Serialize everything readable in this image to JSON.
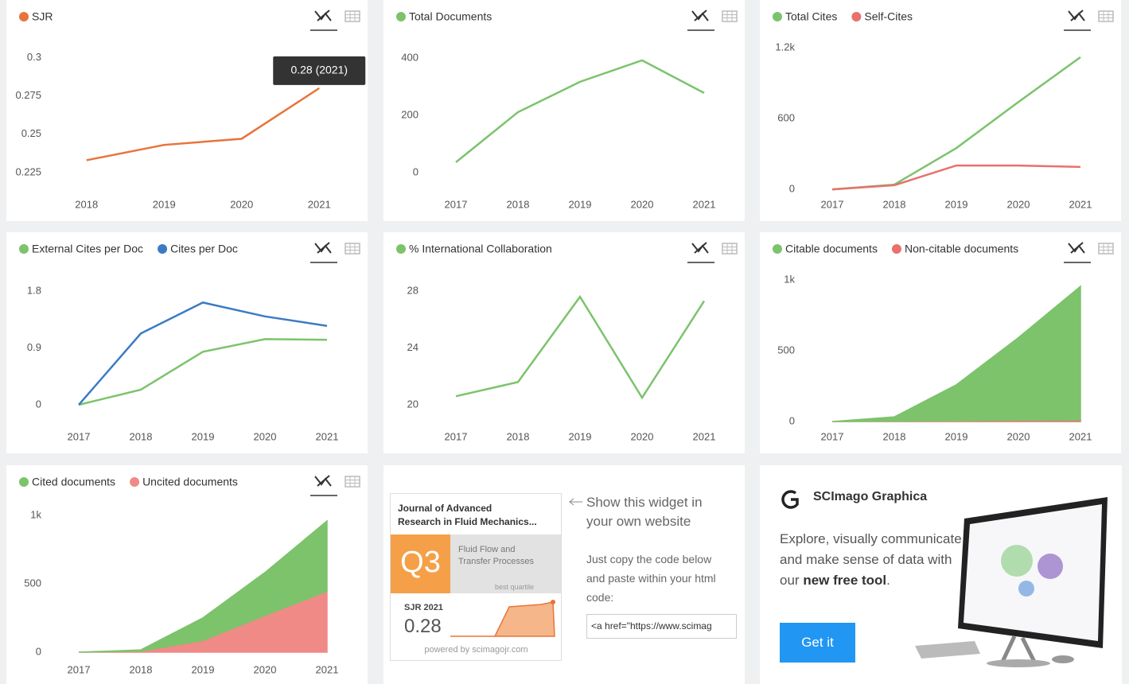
{
  "chart_data": [
    {
      "type": "line",
      "categories": [
        "2018",
        "2019",
        "2020",
        "2021"
      ],
      "series": [
        {
          "name": "SJR",
          "color": "#e8743b",
          "values": [
            0.233,
            0.243,
            0.247,
            0.28
          ]
        }
      ],
      "ylim": [
        0.213,
        0.309
      ],
      "yticks": [
        0.225,
        0.25,
        0.275,
        0.3
      ],
      "tooltip": "0.28 (2021)"
    },
    {
      "type": "line",
      "categories": [
        "2017",
        "2018",
        "2019",
        "2020",
        "2021"
      ],
      "series": [
        {
          "name": "Total Documents",
          "color": "#7cc36c",
          "values": [
            36,
            211,
            317,
            392,
            278
          ]
        }
      ],
      "ylim": [
        -64,
        450
      ],
      "yticks": [
        0,
        200,
        400
      ]
    },
    {
      "type": "line",
      "categories": [
        "2017",
        "2018",
        "2019",
        "2020",
        "2021"
      ],
      "series": [
        {
          "name": "Total Cites",
          "color": "#7cc36c",
          "values": [
            0,
            40,
            350,
            740,
            1120
          ]
        },
        {
          "name": "Self-Cites",
          "color": "#e8716c",
          "values": [
            0,
            35,
            202,
            202,
            190
          ]
        }
      ],
      "ylim": [
        -13,
        1234
      ],
      "yticks": [
        0,
        600,
        {
          "value": 1200,
          "label": "1.2k"
        }
      ]
    },
    {
      "type": "line",
      "categories": [
        "2017",
        "2018",
        "2019",
        "2020",
        "2021"
      ],
      "series": [
        {
          "name": "External Cites per Doc",
          "color": "#7cc36c",
          "values": [
            0,
            0.24,
            0.84,
            1.04,
            1.03
          ]
        },
        {
          "name": "Cites per Doc",
          "color": "#3c7bc4",
          "values": [
            0,
            1.13,
            1.62,
            1.4,
            1.25
          ]
        }
      ],
      "ylim": [
        -0.29,
        2.04
      ],
      "yticks": [
        0,
        0.9,
        1.8
      ]
    },
    {
      "type": "line",
      "categories": [
        "2017",
        "2018",
        "2019",
        "2020",
        "2021"
      ],
      "series": [
        {
          "name": "% International Collaboration",
          "color": "#7cc36c",
          "values": [
            20.6,
            21.6,
            27.6,
            20.5,
            27.3
          ]
        }
      ],
      "ylim": [
        18.71,
        29.06
      ],
      "yticks": [
        20,
        24,
        28
      ]
    },
    {
      "type": "area",
      "categories": [
        "2017",
        "2018",
        "2019",
        "2020",
        "2021"
      ],
      "series": [
        {
          "name": "Citable documents",
          "color": "#7cc36c",
          "values": [
            0,
            30,
            255,
            585,
            945
          ]
        },
        {
          "name": "Non-citable documents",
          "color": "#e8716c",
          "values": [
            0,
            3,
            5,
            8,
            10
          ]
        }
      ],
      "ylim": [
        -11,
        1028
      ],
      "yticks": [
        0,
        500,
        {
          "value": 1000,
          "label": "1k"
        }
      ]
    },
    {
      "type": "area",
      "categories": [
        "2017",
        "2018",
        "2019",
        "2020",
        "2021"
      ],
      "series": [
        {
          "name": "Cited documents",
          "color": "#7cc36c",
          "values": [
            0,
            9,
            165,
            314,
            514
          ]
        },
        {
          "name": "Uncited documents",
          "color": "#f08a86",
          "values": [
            0,
            8,
            86,
            269,
            446
          ]
        }
      ],
      "ylim": [
        -29,
        1047
      ],
      "yticks": [
        0,
        500,
        {
          "value": 1000,
          "label": "1k"
        }
      ]
    }
  ],
  "widget": {
    "journal": [
      "Journal of Advanced",
      "Research in Fluid Mechanics..."
    ],
    "quartile": "Q3",
    "category": [
      "Fluid Flow and",
      "Transfer Processes"
    ],
    "quartile_note": "best quartile",
    "sjr_label": "SJR 2021",
    "sjr_value": "0.28",
    "powered": "powered by scimagojr.com",
    "heading": [
      "Show this widget in",
      "your own website"
    ],
    "instructions": [
      "Just copy the code below",
      "and paste within your html",
      "code:"
    ],
    "code": "<a href=\"https://www.scimag"
  },
  "graphica": {
    "title": "SCImago Graphica",
    "text": "Explore, visually communicate and make sense of data with our",
    "bold": "new free tool",
    "tail": ".",
    "button": "Get it"
  }
}
